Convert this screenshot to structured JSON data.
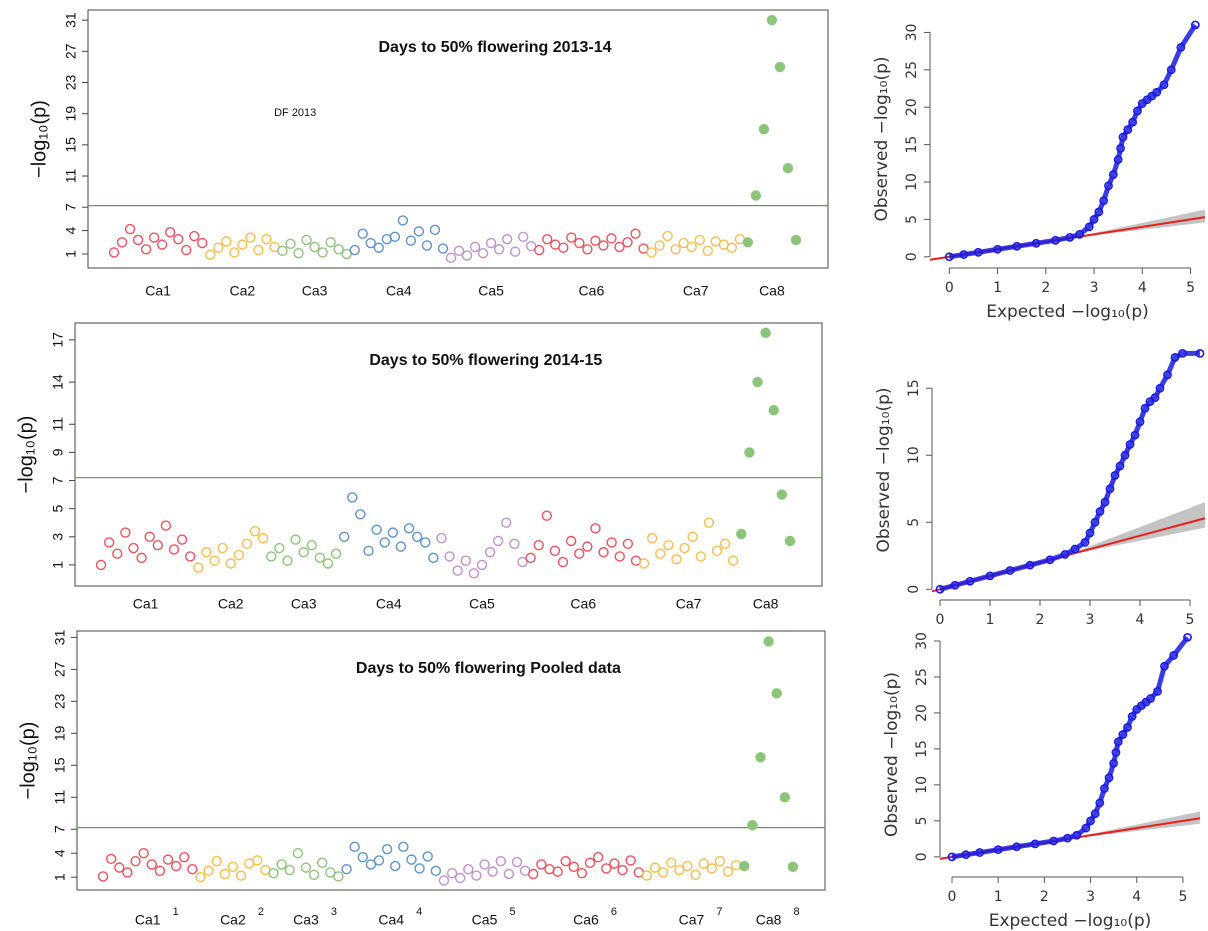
{
  "chart_data": [
    {
      "type": "manhattan",
      "title": "Days to 50% flowering 2013-14",
      "annotation": "DF 2013",
      "ylabel": "−log₁₀(p)",
      "ylim": [
        -0.8,
        32.3
      ],
      "yticks": [
        1,
        4,
        7,
        11,
        15,
        19,
        23,
        27,
        31
      ],
      "threshold": 7.2,
      "threshold_color": "#5a9e4c",
      "series": [
        {
          "name": "Ca1",
          "color": "#e8535e",
          "values": [
            1.2,
            2.5,
            4.2,
            2.8,
            1.6,
            3.1,
            2.2,
            3.8,
            2.9,
            1.5,
            3.3,
            2.4
          ]
        },
        {
          "name": "Ca2",
          "color": "#f7bd4f",
          "values": [
            0.9,
            1.8,
            2.6,
            1.2,
            2.2,
            3.1,
            1.5,
            2.9,
            1.9
          ]
        },
        {
          "name": "Ca3",
          "color": "#8cc47a",
          "values": [
            1.4,
            2.3,
            1.1,
            2.8,
            1.9,
            1.2,
            2.5,
            1.6,
            1.0
          ]
        },
        {
          "name": "Ca4",
          "color": "#5b93cc",
          "values": [
            1.5,
            3.6,
            2.4,
            1.8,
            2.9,
            3.2,
            5.3,
            2.7,
            3.9,
            2.1,
            4.1,
            1.7
          ]
        },
        {
          "name": "Ca5",
          "color": "#c190cc",
          "values": [
            0.5,
            1.4,
            0.8,
            1.9,
            1.1,
            2.4,
            1.6,
            2.9,
            1.3,
            3.2,
            2.0
          ]
        },
        {
          "name": "Ca6",
          "color": "#e8535e",
          "values": [
            1.5,
            2.9,
            2.2,
            1.8,
            3.1,
            2.4,
            1.6,
            2.7,
            2.1,
            3.0,
            1.9,
            2.5,
            3.6,
            1.7
          ]
        },
        {
          "name": "Ca7",
          "color": "#f7bd4f",
          "values": [
            1.2,
            2.1,
            3.3,
            1.6,
            2.4,
            1.9,
            2.8,
            1.4,
            2.6,
            2.2,
            1.8,
            2.9
          ]
        },
        {
          "name": "Ca8",
          "color": "#8cc47a",
          "filled": true,
          "values": [
            2.5,
            8.5,
            17,
            31,
            25,
            12,
            2.8
          ]
        }
      ]
    },
    {
      "type": "manhattan",
      "title": "Days to 50% flowering 2014-15",
      "ylabel": "−log₁₀(p)",
      "ylim": [
        -0.5,
        18.2
      ],
      "yticks": [
        1,
        3,
        5,
        7,
        9,
        11,
        14,
        17
      ],
      "threshold": 7.2,
      "threshold_color": "#5a9e4c",
      "series": [
        {
          "name": "Ca1",
          "color": "#e8535e",
          "values": [
            1.0,
            2.6,
            1.8,
            3.3,
            2.2,
            1.5,
            3.0,
            2.4,
            3.8,
            2.1,
            2.8,
            1.6
          ]
        },
        {
          "name": "Ca2",
          "color": "#f7bd4f",
          "values": [
            0.8,
            1.9,
            1.3,
            2.2,
            1.1,
            1.7,
            2.5,
            3.4,
            2.9
          ]
        },
        {
          "name": "Ca3",
          "color": "#8cc47a",
          "values": [
            1.6,
            2.2,
            1.3,
            2.8,
            1.9,
            2.4,
            1.5,
            1.1,
            1.8
          ]
        },
        {
          "name": "Ca4",
          "color": "#5b93cc",
          "values": [
            3.0,
            5.8,
            4.6,
            2.0,
            3.5,
            2.6,
            3.3,
            2.3,
            3.6,
            3.0,
            2.6,
            1.5
          ]
        },
        {
          "name": "Ca5",
          "color": "#c190cc",
          "values": [
            2.9,
            1.6,
            0.6,
            1.3,
            0.4,
            1.0,
            1.9,
            2.7,
            4.0,
            2.5,
            1.2
          ]
        },
        {
          "name": "Ca6",
          "color": "#e8535e",
          "values": [
            1.5,
            2.4,
            4.5,
            2.0,
            1.2,
            2.7,
            1.8,
            2.3,
            3.6,
            1.9,
            2.6,
            1.6,
            2.5,
            1.3
          ]
        },
        {
          "name": "Ca7",
          "color": "#f7bd4f",
          "values": [
            1.1,
            2.9,
            1.8,
            2.4,
            1.4,
            2.2,
            3.0,
            1.6,
            4.0,
            2.0,
            2.5,
            1.3
          ]
        },
        {
          "name": "Ca8",
          "color": "#8cc47a",
          "filled": true,
          "values": [
            3.2,
            9,
            14,
            17.5,
            12,
            6,
            2.7
          ]
        }
      ]
    },
    {
      "type": "manhattan",
      "title": "Days to 50% flowering Pooled data",
      "ylabel": "−log₁₀(p)",
      "ylim": [
        -0.6,
        31.8
      ],
      "yticks": [
        1,
        4,
        7,
        11,
        15,
        19,
        23,
        27,
        31
      ],
      "threshold": 7.2,
      "threshold_color": "#5a9e4c",
      "x_extra_labels": [
        "1",
        "2",
        "3",
        "4",
        "5",
        "6",
        "7",
        "8"
      ],
      "series": [
        {
          "name": "Ca1",
          "color": "#e8535e",
          "values": [
            1.1,
            3.3,
            2.2,
            1.6,
            3.0,
            4.0,
            2.6,
            1.8,
            3.2,
            2.4,
            3.5,
            2.0
          ]
        },
        {
          "name": "Ca2",
          "color": "#f7bd4f",
          "values": [
            1.0,
            1.8,
            3.0,
            1.4,
            2.3,
            1.2,
            2.7,
            3.1,
            1.9
          ]
        },
        {
          "name": "Ca3",
          "color": "#8cc47a",
          "values": [
            1.5,
            2.6,
            1.9,
            4.0,
            2.2,
            1.3,
            2.8,
            1.6,
            1.1
          ]
        },
        {
          "name": "Ca4",
          "color": "#5b93cc",
          "values": [
            2.0,
            4.8,
            3.5,
            2.6,
            3.1,
            4.5,
            2.4,
            4.8,
            3.2,
            2.1,
            3.6,
            1.8
          ]
        },
        {
          "name": "Ca5",
          "color": "#c190cc",
          "values": [
            0.6,
            1.5,
            0.9,
            2.0,
            1.2,
            2.6,
            1.7,
            3.0,
            1.4,
            2.9,
            1.8
          ]
        },
        {
          "name": "Ca6",
          "color": "#e8535e",
          "values": [
            1.4,
            2.6,
            2.0,
            1.7,
            3.0,
            2.3,
            1.5,
            2.8,
            3.5,
            2.1,
            2.7,
            1.9,
            3.1,
            1.6
          ]
        },
        {
          "name": "Ca7",
          "color": "#f7bd4f",
          "values": [
            1.2,
            2.2,
            1.6,
            2.8,
            1.9,
            2.4,
            1.3,
            2.7,
            2.1,
            3.0,
            1.7,
            2.5
          ]
        },
        {
          "name": "Ca8",
          "color": "#8cc47a",
          "filled": true,
          "values": [
            2.4,
            7.5,
            16,
            30.5,
            24,
            11,
            2.3
          ]
        }
      ]
    },
    {
      "type": "qq",
      "xlabel": "Expected −log₁₀(p)",
      "ylabel": "Observed −log₁₀(p)",
      "xlim": [
        -0.4,
        5.3
      ],
      "xticks": [
        0,
        1,
        2,
        3,
        4,
        5
      ],
      "ylim": [
        -1.5,
        33
      ],
      "yticks": [
        0,
        5,
        10,
        15,
        20,
        25,
        30
      ],
      "band": {
        "color": "#b5b5b5",
        "x": [
          2.5,
          5.3
        ],
        "lower": [
          2.5,
          4.6
        ],
        "upper": [
          2.5,
          6.3
        ]
      },
      "reference": {
        "color": "#e8201c",
        "x": [
          -0.4,
          5.3
        ],
        "y": [
          -0.4,
          5.3
        ]
      },
      "points": {
        "color": "#1a1ae0",
        "x": [
          0,
          0.3,
          0.6,
          1,
          1.4,
          1.8,
          2.2,
          2.5,
          2.7,
          2.9,
          3.0,
          3.1,
          3.2,
          3.3,
          3.4,
          3.5,
          3.55,
          3.6,
          3.7,
          3.8,
          3.9,
          4.0,
          4.1,
          4.2,
          4.3,
          4.45,
          4.6,
          4.8,
          5.1
        ],
        "y": [
          0,
          0.3,
          0.6,
          1,
          1.4,
          1.8,
          2.2,
          2.6,
          3.0,
          4.0,
          5.0,
          6.0,
          7.5,
          9.5,
          11,
          13,
          14.5,
          16,
          17,
          18,
          19.5,
          20.5,
          21,
          21.5,
          22,
          23,
          25,
          28,
          31
        ]
      }
    },
    {
      "type": "qq",
      "ylabel": "Observed −log₁₀(p)",
      "xlim": [
        -0.16,
        5.3
      ],
      "xticks": [
        0,
        1,
        2,
        3,
        4,
        5
      ],
      "ylim": [
        -0.8,
        18.6
      ],
      "yticks": [
        0,
        5,
        10,
        15
      ],
      "band": {
        "color": "#b5b5b5",
        "x": [
          2.5,
          5.3
        ],
        "lower": [
          2.5,
          4.6
        ],
        "upper": [
          2.5,
          6.5
        ]
      },
      "reference": {
        "color": "#e8201c",
        "x": [
          -0.16,
          5.3
        ],
        "y": [
          -0.16,
          5.3
        ]
      },
      "points": {
        "color": "#1a1ae0",
        "x": [
          0,
          0.3,
          0.6,
          1,
          1.4,
          1.8,
          2.2,
          2.5,
          2.7,
          2.9,
          3.0,
          3.1,
          3.2,
          3.3,
          3.4,
          3.5,
          3.6,
          3.7,
          3.8,
          3.9,
          4.0,
          4.1,
          4.2,
          4.3,
          4.4,
          4.55,
          4.7,
          4.85,
          5.2
        ],
        "y": [
          0,
          0.3,
          0.6,
          1,
          1.4,
          1.8,
          2.2,
          2.6,
          3.0,
          3.5,
          4.2,
          5,
          5.8,
          6.5,
          7.5,
          8.5,
          9.2,
          10,
          10.8,
          11.5,
          12.5,
          13.5,
          14,
          14.3,
          15,
          16,
          17.3,
          17.6,
          17.6
        ]
      }
    },
    {
      "type": "qq",
      "xlabel": "Expected −log₁₀(p)",
      "ylabel": "Observed −log₁₀(p)",
      "xlim": [
        -0.26,
        5.37
      ],
      "xticks": [
        0,
        1,
        2,
        3,
        4,
        5
      ],
      "ylim": [
        -2.8,
        31.25
      ],
      "yticks": [
        0,
        5,
        10,
        15,
        20,
        25,
        30
      ],
      "band": {
        "color": "#b5b5b5",
        "x": [
          2.5,
          5.37
        ],
        "lower": [
          2.5,
          4.6
        ],
        "upper": [
          2.5,
          6.3
        ]
      },
      "reference": {
        "color": "#e8201c",
        "x": [
          -0.26,
          5.37
        ],
        "y": [
          -0.26,
          5.37
        ]
      },
      "points": {
        "color": "#1a1ae0",
        "x": [
          0,
          0.3,
          0.6,
          1,
          1.4,
          1.8,
          2.2,
          2.5,
          2.7,
          2.9,
          3.0,
          3.1,
          3.2,
          3.3,
          3.4,
          3.5,
          3.55,
          3.6,
          3.7,
          3.8,
          3.9,
          4.0,
          4.1,
          4.2,
          4.3,
          4.45,
          4.6,
          4.8,
          5.1
        ],
        "y": [
          0,
          0.3,
          0.6,
          1,
          1.4,
          1.8,
          2.2,
          2.6,
          3.0,
          4.0,
          5.0,
          6.0,
          7.5,
          9.5,
          11,
          13,
          14.5,
          16,
          17,
          18,
          19.5,
          20.5,
          21,
          21.5,
          22,
          23,
          26.5,
          28,
          30.5
        ]
      }
    }
  ]
}
